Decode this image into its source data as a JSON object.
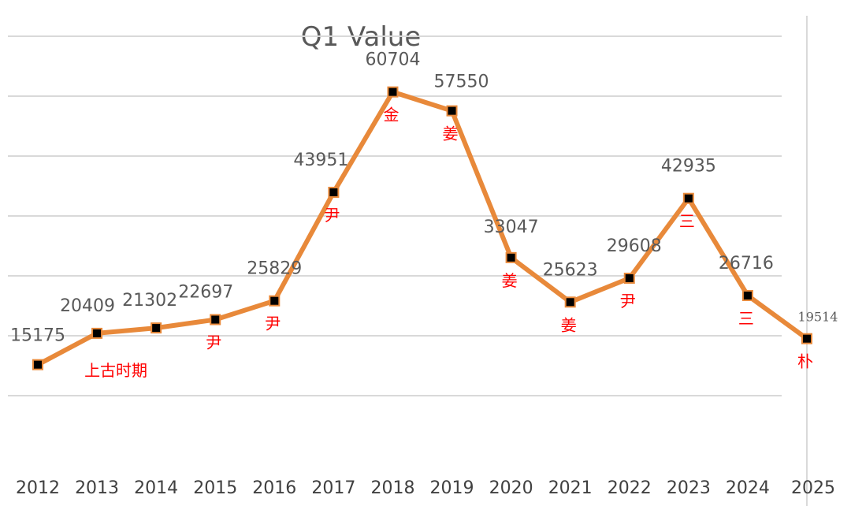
{
  "chart_data": {
    "type": "line",
    "title": "Q1 Value",
    "xlabel": "",
    "ylabel": "",
    "categories": [
      "2012",
      "2013",
      "2014",
      "2015",
      "2016",
      "2017",
      "2018",
      "2019",
      "2020",
      "2021",
      "2022",
      "2023",
      "2024",
      "2025"
    ],
    "series": [
      {
        "values": [
          15175,
          20409,
          21302,
          22697,
          25829,
          43951,
          60704,
          57550,
          33047,
          25623,
          29608,
          42935,
          26716,
          19514
        ],
        "data_labels": [
          "15175",
          "20409",
          "21302",
          "22697",
          "25829",
          "43951",
          "60704",
          "57550",
          "33047",
          "25623",
          "29608",
          "42935",
          "26716",
          "19514"
        ],
        "color": "#e8893a",
        "marker_color": "#000000"
      }
    ],
    "annotations": [
      "",
      "上古时期",
      "",
      "尹",
      "尹",
      "尹",
      "金",
      "姜",
      "姜",
      "姜",
      "尹",
      "三",
      "三",
      "朴"
    ],
    "annotation_color": "#ff0000",
    "ylim": [
      0,
      70000
    ],
    "grid": true,
    "legend": "none"
  }
}
